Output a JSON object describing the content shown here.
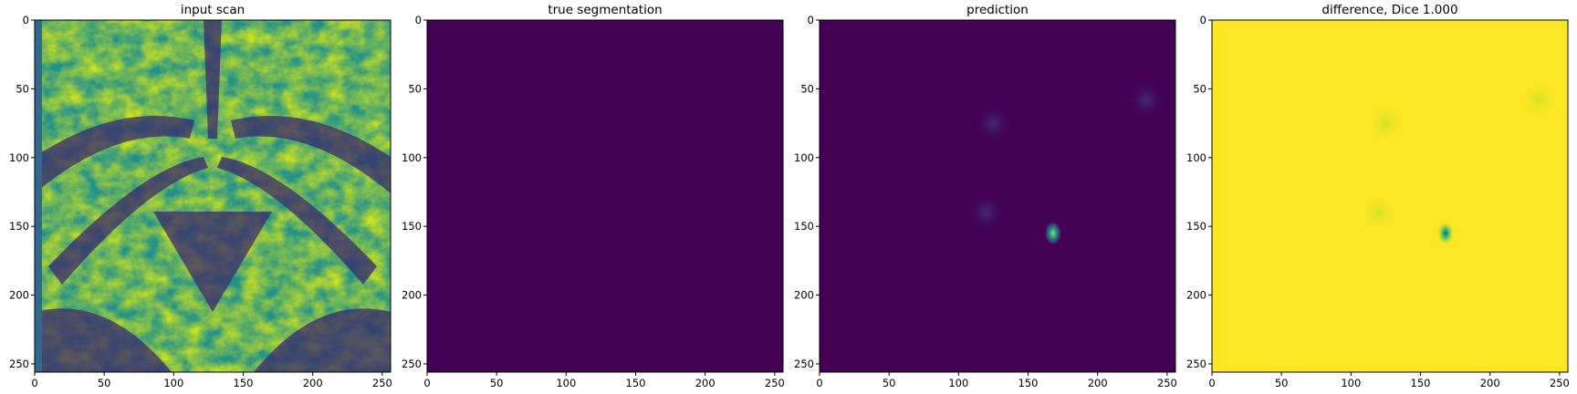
{
  "chart_data": [
    {
      "type": "heatmap",
      "title": "input scan",
      "content": "MRI scan",
      "colormap": "viridis",
      "xlim": [
        0,
        256
      ],
      "ylim": [
        256,
        0
      ],
      "xticks": [
        0,
        50,
        100,
        150,
        200,
        250
      ],
      "yticks": [
        0,
        50,
        100,
        150,
        200,
        250
      ]
    },
    {
      "type": "heatmap",
      "title": "true segmentation",
      "content": "uniform",
      "colormap": "viridis",
      "fill_color": "#440154",
      "xlim": [
        0,
        256
      ],
      "ylim": [
        256,
        0
      ],
      "xticks": [
        0,
        50,
        100,
        150,
        200,
        250
      ],
      "yticks": [
        0,
        50,
        100,
        150,
        200,
        250
      ]
    },
    {
      "type": "heatmap",
      "title": "prediction",
      "content": "near-uniform with sparse activation",
      "colormap": "viridis",
      "fill_color": "#440154",
      "hotspots": [
        {
          "x": 168,
          "y": 155,
          "value": "high"
        },
        {
          "x": 120,
          "y": 140,
          "value": "low"
        },
        {
          "x": 125,
          "y": 75,
          "value": "low"
        },
        {
          "x": 235,
          "y": 58,
          "value": "low"
        }
      ],
      "xlim": [
        0,
        256
      ],
      "ylim": [
        256,
        0
      ],
      "xticks": [
        0,
        50,
        100,
        150,
        200,
        250
      ],
      "yticks": [
        0,
        50,
        100,
        150,
        200,
        250
      ]
    },
    {
      "type": "heatmap",
      "title": "difference, Dice 1.000",
      "content": "near-uniform with sparse deviation",
      "colormap": "viridis",
      "fill_color": "#fde725",
      "hotspots": [
        {
          "x": 168,
          "y": 155,
          "value": "low"
        },
        {
          "x": 120,
          "y": 140,
          "value": "slightly low"
        },
        {
          "x": 125,
          "y": 75,
          "value": "slightly low"
        },
        {
          "x": 235,
          "y": 58,
          "value": "slightly low"
        }
      ],
      "xlim": [
        0,
        256
      ],
      "ylim": [
        256,
        0
      ],
      "xticks": [
        0,
        50,
        100,
        150,
        200,
        250
      ],
      "yticks": [
        0,
        50,
        100,
        150,
        200,
        250
      ]
    }
  ],
  "colors": {
    "viridis_low": "#440154",
    "viridis_mid": "#21918c",
    "viridis_high": "#fde725"
  }
}
